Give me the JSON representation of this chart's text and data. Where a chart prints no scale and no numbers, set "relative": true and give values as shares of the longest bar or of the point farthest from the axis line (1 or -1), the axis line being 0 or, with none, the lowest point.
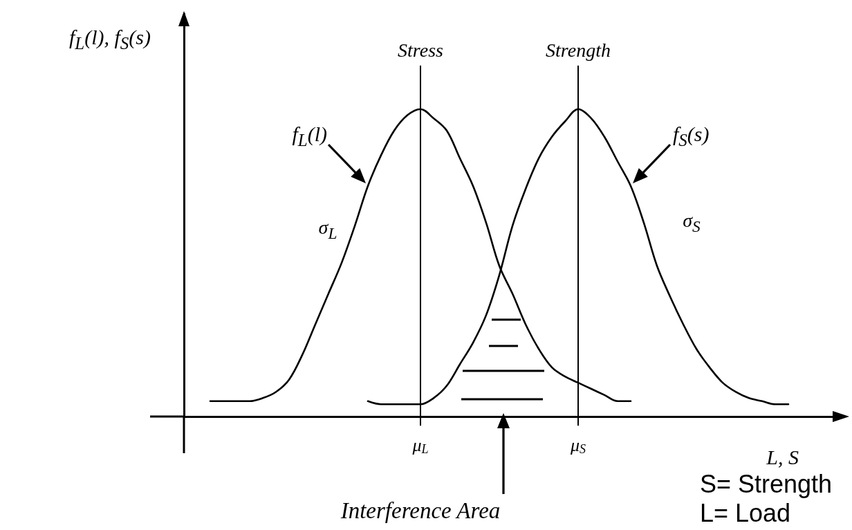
{
  "chart_data": {
    "type": "line",
    "relative": true,
    "ylabel": "f$_{L}$(l), f$_{S}$(s)",
    "xlabel": "L, S",
    "categories": [
      null,
      null,
      null,
      null,
      null,
      null,
      null,
      null,
      null,
      null,
      null,
      null,
      null,
      null,
      null,
      null,
      null,
      null,
      "μ$_{L}$",
      null,
      null,
      null,
      null,
      null,
      null,
      null,
      null,
      null,
      null,
      null,
      "μ$_{S}$",
      null,
      null,
      null,
      null,
      null,
      null,
      null,
      null,
      null,
      null,
      null,
      null,
      null,
      null,
      null,
      null,
      null,
      null,
      null,
      null
    ],
    "series": [
      {
        "name": "f$_{L}$(l)",
        "color": "#000000",
        "values": [
          null,
          null,
          0.05,
          0.05,
          0.05,
          0.05,
          0.06,
          0.08,
          0.12,
          0.2,
          0.3,
          0.4,
          0.5,
          0.62,
          0.75,
          0.85,
          0.93,
          0.98,
          1.0,
          0.97,
          0.93,
          0.84,
          0.75,
          0.63,
          0.49,
          0.4,
          0.3,
          0.22,
          0.16,
          0.13,
          0.11,
          0.09,
          0.07,
          0.05,
          0.05,
          null,
          null,
          null,
          null,
          null,
          null,
          null,
          null,
          null,
          null,
          null,
          null,
          null,
          null,
          null,
          null
        ]
      },
      {
        "name": "f$_{S}$(s)",
        "color": "#000000",
        "values": [
          null,
          null,
          null,
          null,
          null,
          null,
          null,
          null,
          null,
          null,
          null,
          null,
          null,
          null,
          0.05,
          0.04,
          0.04,
          0.04,
          0.04,
          0.06,
          0.1,
          0.17,
          0.24,
          0.33,
          0.46,
          0.62,
          0.74,
          0.84,
          0.91,
          0.96,
          1.0,
          0.97,
          0.91,
          0.83,
          0.75,
          0.63,
          0.49,
          0.39,
          0.3,
          0.22,
          0.16,
          0.11,
          0.08,
          0.06,
          0.05,
          0.04,
          0.04,
          null,
          null,
          null,
          null
        ]
      }
    ],
    "ref_lines": [
      {
        "axis": "x",
        "value": "μ$_{L}$",
        "label": "Stress",
        "color": "#000000"
      },
      {
        "axis": "x",
        "value": "μ$_{S}$",
        "label": "Strength",
        "color": "#000000"
      }
    ],
    "annotations": [
      "σ$_{L}$",
      "σ$_{S}$",
      "Interference Area",
      "S= Strength",
      "L= Load"
    ],
    "legend": false,
    "grid": false
  }
}
